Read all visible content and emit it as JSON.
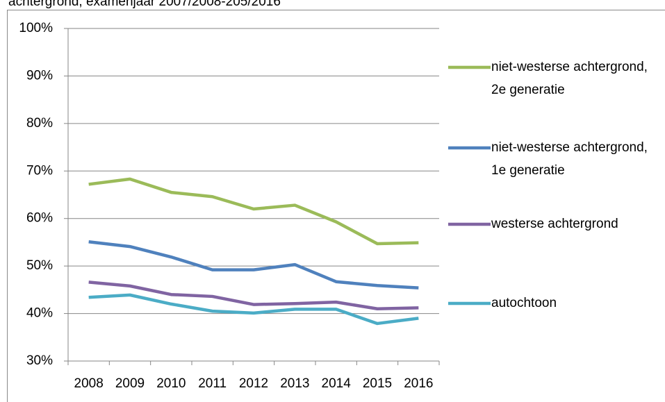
{
  "chart_data": {
    "type": "line",
    "title": "achtergrond, examenjaar 2007/2008-205/2016",
    "categories": [
      "2008",
      "2009",
      "2010",
      "2011",
      "2012",
      "2013",
      "2014",
      "2015",
      "2016"
    ],
    "ylim": [
      30,
      100
    ],
    "yticks": [
      {
        "value": 30,
        "label": "30%"
      },
      {
        "value": 40,
        "label": "40%"
      },
      {
        "value": 50,
        "label": "50%"
      },
      {
        "value": 60,
        "label": "60%"
      },
      {
        "value": 70,
        "label": "70%"
      },
      {
        "value": 80,
        "label": "80%"
      },
      {
        "value": 90,
        "label": "90%"
      },
      {
        "value": 100,
        "label": "100%"
      }
    ],
    "grid": true,
    "legend": "right",
    "series": [
      {
        "name": "niet-westerse achtergrond, 2e generatie",
        "color": "#9bbb59",
        "values": [
          67.2,
          68.3,
          65.5,
          64.6,
          62.0,
          62.8,
          59.3,
          54.7,
          54.9
        ]
      },
      {
        "name": "niet-westerse achtergrond, 1e generatie",
        "color": "#4f81bd",
        "values": [
          55.1,
          54.1,
          51.9,
          49.2,
          49.2,
          50.3,
          46.7,
          45.9,
          45.4
        ]
      },
      {
        "name": "westerse achtergrond",
        "color": "#8064a2",
        "values": [
          46.6,
          45.8,
          44.0,
          43.6,
          41.9,
          42.1,
          42.4,
          41.0,
          41.2
        ]
      },
      {
        "name": "autochtoon",
        "color": "#4bacc6",
        "values": [
          43.4,
          43.9,
          42.0,
          40.5,
          40.1,
          40.9,
          40.9,
          37.9,
          39.0
        ]
      }
    ]
  }
}
